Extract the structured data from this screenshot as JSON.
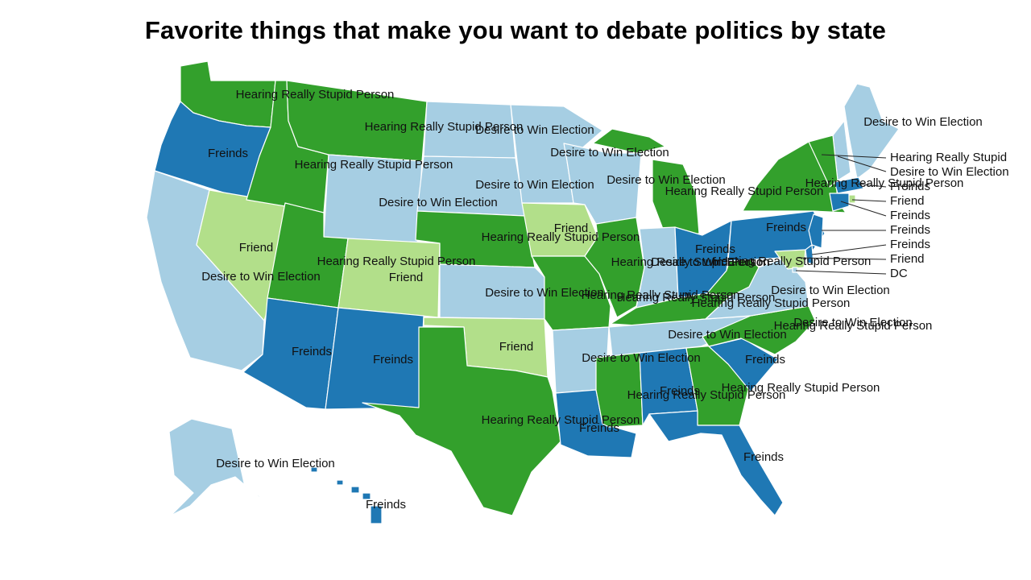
{
  "title": "Favorite things that make you want to debate politics by state",
  "legend_colors": {
    "Desire to Win Election": "#a6cee3",
    "Freinds": "#1f78b4",
    "Friend": "#b2df8a",
    "Hearing Really Stupid Person": "#33a02c"
  },
  "states": [
    {
      "code": "WA",
      "category": "Hearing Really Stupid Person",
      "label": "Hearing Really Stupid Person"
    },
    {
      "code": "OR",
      "category": "Freinds",
      "label": "Freinds"
    },
    {
      "code": "CA",
      "category": "Desire to Win Election",
      "label": "Desire to Win Election"
    },
    {
      "code": "NV",
      "category": "Friend",
      "label": "Friend"
    },
    {
      "code": "ID",
      "category": "Hearing Really Stupid Person",
      "label": "Hearing Really Stupid Person"
    },
    {
      "code": "MT",
      "category": "Hearing Really Stupid Person",
      "label": "Hearing Really Stupid Person"
    },
    {
      "code": "WY",
      "category": "Desire to Win Election",
      "label": "Desire to Win Election"
    },
    {
      "code": "UT",
      "category": "Hearing Really Stupid Person",
      "label": "Hearing Really Stupid Person"
    },
    {
      "code": "CO",
      "category": "Friend",
      "label": "Friend"
    },
    {
      "code": "AZ",
      "category": "Freinds",
      "label": "Freinds"
    },
    {
      "code": "NM",
      "category": "Freinds",
      "label": "Freinds"
    },
    {
      "code": "ND",
      "category": "Desire to Win Election",
      "label": "Desire to Win Election"
    },
    {
      "code": "SD",
      "category": "Desire to Win Election",
      "label": "Desire to Win Election"
    },
    {
      "code": "NE",
      "category": "Hearing Really Stupid Person",
      "label": "Hearing Really Stupid Person"
    },
    {
      "code": "KS",
      "category": "Desire to Win Election",
      "label": "Desire to Win Election"
    },
    {
      "code": "OK",
      "category": "Friend",
      "label": "Friend"
    },
    {
      "code": "TX",
      "category": "Hearing Really Stupid Person",
      "label": "Hearing Really Stupid Person"
    },
    {
      "code": "MN",
      "category": "Desire to Win Election",
      "label": "Desire to Win Election"
    },
    {
      "code": "IA",
      "category": "Friend",
      "label": "Friend"
    },
    {
      "code": "MO",
      "category": "Hearing Really Stupid Person",
      "label": "Hearing Really Stupid Person"
    },
    {
      "code": "AR",
      "category": "Desire to Win Election",
      "label": "Desire to Win Election"
    },
    {
      "code": "LA",
      "category": "Freinds",
      "label": "Freinds"
    },
    {
      "code": "WI",
      "category": "Desire to Win Election",
      "label": "Desire to Win Election"
    },
    {
      "code": "IL",
      "category": "Hearing Really Stupid Person",
      "label": "Hearing Really Stupid Person"
    },
    {
      "code": "MI",
      "category": "Hearing Really Stupid Person",
      "label": "Hearing Really Stupid Person"
    },
    {
      "code": "IN",
      "category": "Desire to Win Election",
      "label": "Desire to Win Election"
    },
    {
      "code": "OH",
      "category": "Freinds",
      "label": "Freinds"
    },
    {
      "code": "KY",
      "category": "Hearing Really Stupid Person",
      "label": "Hearing Really Stupid Person"
    },
    {
      "code": "TN",
      "category": "Desire to Win Election",
      "label": "Desire to Win Election"
    },
    {
      "code": "MS",
      "category": "Hearing Really Stupid Person",
      "label": "Hearing Really Stupid Person"
    },
    {
      "code": "AL",
      "category": "Freinds",
      "label": "Freinds"
    },
    {
      "code": "GA",
      "category": "Hearing Really Stupid Person",
      "label": "Hearing Really Stupid Person"
    },
    {
      "code": "FL",
      "category": "Freinds",
      "label": "Freinds"
    },
    {
      "code": "SC",
      "category": "Freinds",
      "label": "Freinds"
    },
    {
      "code": "NC",
      "category": "Hearing Really Stupid Person",
      "label": "Hearing Really Stupid Person"
    },
    {
      "code": "VA",
      "category": "Desire to Win Election",
      "label": "Desire to Win Election"
    },
    {
      "code": "WV",
      "category": "Hearing Really Stupid Person",
      "label": "Hearing Really Stupid Person"
    },
    {
      "code": "PA",
      "category": "Freinds",
      "label": "Freinds"
    },
    {
      "code": "NY",
      "category": "Hearing Really Stupid Person",
      "label": "Hearing Really Stupid Person"
    },
    {
      "code": "ME",
      "category": "Desire to Win Election",
      "label": "Desire to Win Election"
    },
    {
      "code": "AK",
      "category": "Desire to Win Election",
      "label": "Desire to Win Election"
    },
    {
      "code": "HI",
      "category": "Freinds",
      "label": "Freinds"
    },
    {
      "code": "NH",
      "category": "Desire to Win Election",
      "label": "Desire to Win Election"
    },
    {
      "code": "VT",
      "category": "Hearing Really Stupid Person",
      "label": "Hearing Really Stupid"
    },
    {
      "code": "MA",
      "category": "Freinds",
      "label": "Freinds"
    },
    {
      "code": "RI",
      "category": "Friend",
      "label": "Friend"
    },
    {
      "code": "CT",
      "category": "Freinds",
      "label": "Freinds"
    },
    {
      "code": "NJ",
      "category": "Freinds",
      "label": "Freinds"
    },
    {
      "code": "DE",
      "category": "Freinds",
      "label": "Freinds"
    },
    {
      "code": "MD",
      "category": "Friend",
      "label": "Friend"
    },
    {
      "code": "DC",
      "category": "Desire to Win Election",
      "label": "DC"
    }
  ],
  "extra_labels": [
    "Hearing Really Stupid Person",
    "Desire to Win Election"
  ]
}
